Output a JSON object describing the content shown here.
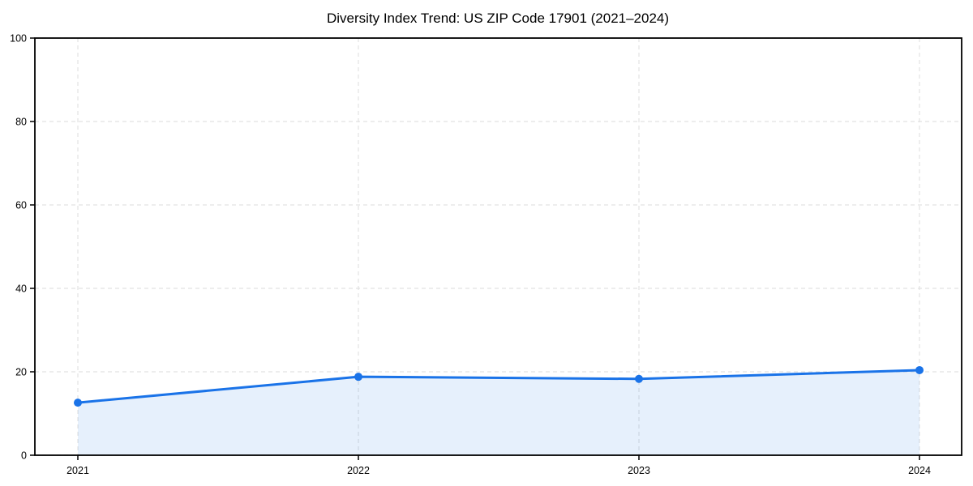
{
  "page": {
    "background_color": "#ffffff"
  },
  "chart_data": {
    "type": "line",
    "title": "Diversity Index Trend: US ZIP Code 17901 (2021–2024)",
    "x": [
      2021,
      2022,
      2023,
      2024
    ],
    "categories": [
      "2021",
      "2022",
      "2023",
      "2024"
    ],
    "series": [
      {
        "name": "Diversity Index",
        "values": [
          12.6,
          18.8,
          18.3,
          20.4
        ]
      }
    ],
    "xlabel": "",
    "ylabel": "",
    "ylim": [
      0,
      100
    ],
    "yticks": [
      0,
      20,
      40,
      60,
      80,
      100
    ],
    "grid": true,
    "grid_style": "dashed",
    "legend_position": "none",
    "style": {
      "line_color": "#1a73e8",
      "marker_color": "#1a73e8",
      "fill_color": "rgba(26,115,232,0.11)",
      "grid_color": "#e2e2e2",
      "axis_color": "#000000",
      "title_color": "#000000"
    }
  }
}
